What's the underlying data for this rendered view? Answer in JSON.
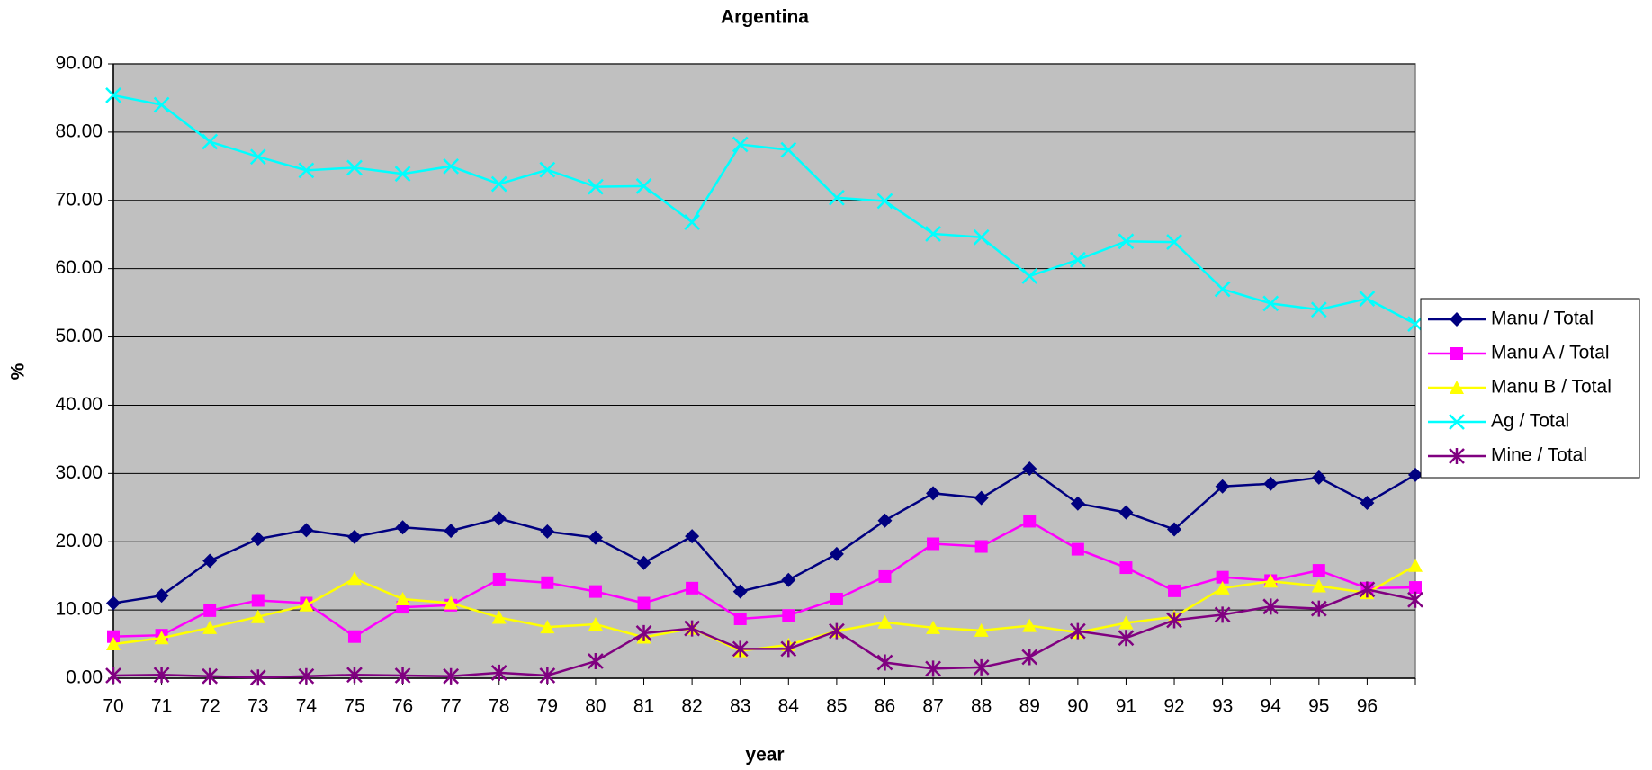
{
  "chart_data": {
    "type": "line",
    "title": "Argentina",
    "x_label": "year",
    "y_label": "%",
    "categories": [
      "70",
      "71",
      "72",
      "73",
      "74",
      "75",
      "76",
      "77",
      "78",
      "79",
      "80",
      "81",
      "82",
      "83",
      "84",
      "85",
      "86",
      "87",
      "88",
      "89",
      "90",
      "91",
      "92",
      "93",
      "94",
      "95",
      "96",
      null
    ],
    "ylim": [
      0,
      90
    ],
    "yticks": [
      {
        "value": 0,
        "label": "0.00"
      },
      {
        "value": 10,
        "label": "10.00"
      },
      {
        "value": 20,
        "label": "20.00"
      },
      {
        "value": 30,
        "label": "30.00"
      },
      {
        "value": 40,
        "label": "40.00"
      },
      {
        "value": 50,
        "label": "50.00"
      },
      {
        "value": 60,
        "label": "60.00"
      },
      {
        "value": 70,
        "label": "70.00"
      },
      {
        "value": 80,
        "label": "80.00"
      },
      {
        "value": 90,
        "label": "90.00"
      }
    ],
    "grid": true,
    "legend": "right",
    "series": [
      {
        "name": "Manu / Total",
        "color": "#000080",
        "marker": "diamond",
        "values": [
          11.0,
          12.1,
          17.2,
          20.4,
          21.7,
          20.7,
          22.1,
          21.6,
          23.4,
          21.5,
          20.6,
          16.9,
          20.8,
          12.7,
          14.4,
          18.2,
          23.1,
          27.1,
          26.4,
          30.7,
          25.6,
          24.3,
          21.8,
          28.1,
          28.5,
          29.4,
          25.7,
          29.8
        ]
      },
      {
        "name": "Manu A / Total",
        "color": "#ff00ff",
        "marker": "square",
        "values": [
          6.1,
          6.3,
          9.9,
          11.4,
          11.0,
          6.1,
          10.4,
          10.7,
          14.5,
          14.0,
          12.7,
          11.0,
          13.2,
          8.7,
          9.2,
          11.6,
          14.9,
          19.7,
          19.3,
          23.0,
          18.9,
          16.2,
          12.8,
          14.8,
          14.3,
          15.8,
          13.2,
          13.3
        ]
      },
      {
        "name": "Manu B / Total",
        "color": "#ffff00",
        "marker": "triangle",
        "values": [
          5.0,
          5.9,
          7.4,
          9.0,
          10.7,
          14.6,
          11.6,
          11.0,
          8.9,
          7.5,
          7.9,
          6.0,
          7.3,
          4.0,
          4.9,
          6.9,
          8.2,
          7.4,
          7.0,
          7.7,
          6.7,
          8.1,
          9.0,
          13.2,
          14.2,
          13.5,
          12.5,
          16.5
        ]
      },
      {
        "name": "Ag / Total",
        "color": "#00ffff",
        "marker": "x",
        "values": [
          85.4,
          84.0,
          78.6,
          76.4,
          74.4,
          74.8,
          73.9,
          75.0,
          72.4,
          74.5,
          72.0,
          72.1,
          66.8,
          78.2,
          77.4,
          70.4,
          69.9,
          65.1,
          64.6,
          58.9,
          61.3,
          64.0,
          63.9,
          57.0,
          54.9,
          54.0,
          55.6,
          51.9
        ]
      },
      {
        "name": "Mine / Total",
        "color": "#800080",
        "marker": "star",
        "values": [
          0.4,
          0.5,
          0.3,
          0.1,
          0.3,
          0.5,
          0.4,
          0.3,
          0.8,
          0.4,
          2.5,
          6.6,
          7.3,
          4.3,
          4.3,
          6.9,
          2.3,
          1.4,
          1.6,
          3.1,
          6.9,
          5.9,
          8.5,
          9.3,
          10.5,
          10.2,
          13.0,
          11.5
        ]
      }
    ]
  }
}
